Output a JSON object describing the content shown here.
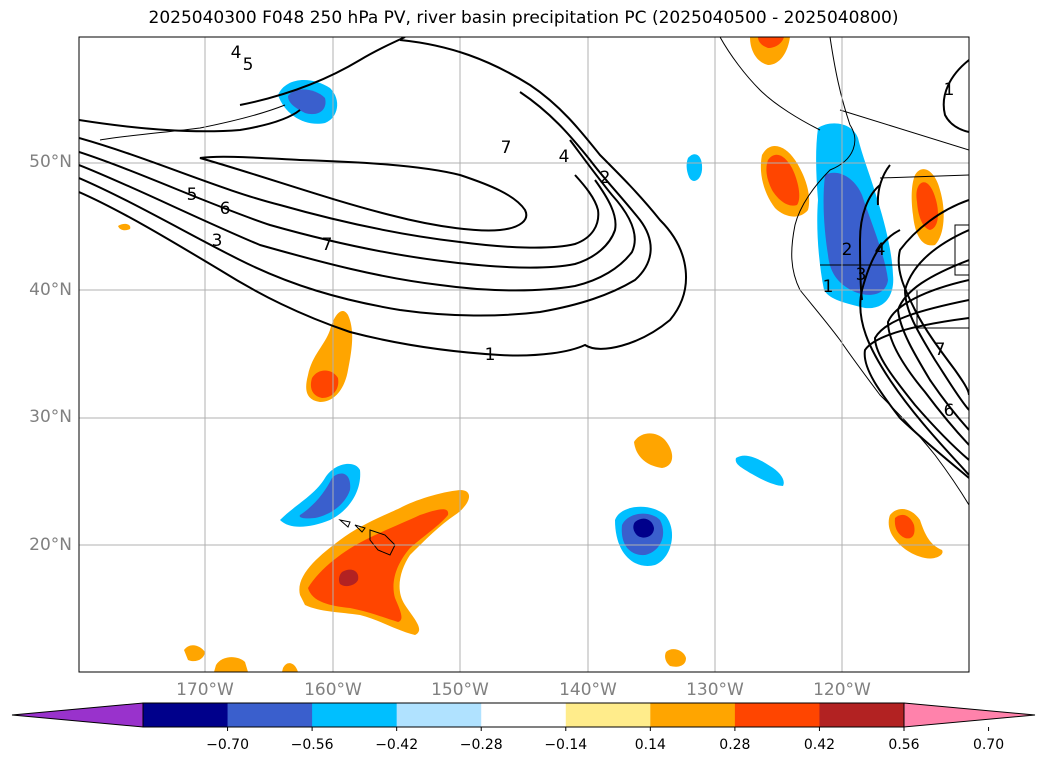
{
  "title": "2025040300 F048 250 hPa PV, river basin precipitation PC (2025040500 - 2025040800)",
  "map": {
    "lon_range": [
      -180,
      -110
    ],
    "lat_range": [
      10,
      60
    ],
    "lat_ticks": [
      {
        "value": 20,
        "label": "20°N"
      },
      {
        "value": 30,
        "label": "30°N"
      },
      {
        "value": 40,
        "label": "40°N"
      },
      {
        "value": 50,
        "label": "50°N"
      }
    ],
    "lon_ticks": [
      {
        "value": -170,
        "label": "170°W"
      },
      {
        "value": -160,
        "label": "160°W"
      },
      {
        "value": -150,
        "label": "150°W"
      },
      {
        "value": -140,
        "label": "140°W"
      },
      {
        "value": -130,
        "label": "130°W"
      },
      {
        "value": -120,
        "label": "120°W"
      }
    ],
    "gridlines": true,
    "pv_contour_labels": [
      "1",
      "2",
      "3",
      "4",
      "5",
      "6",
      "7"
    ]
  },
  "colorbar": {
    "extend": "both",
    "colors": [
      "#9932CC",
      "#00008B",
      "#3A5FCD",
      "#00BFFF",
      "#B0E2FF",
      "#FFFFFF",
      "#FFEC8B",
      "#FFA500",
      "#FF4500",
      "#B22222",
      "#FF82AB"
    ],
    "tick_labels": [
      "−0.70",
      "−0.56",
      "−0.42",
      "−0.28",
      "−0.14",
      "0.14",
      "0.28",
      "0.42",
      "0.56",
      "0.70"
    ]
  }
}
